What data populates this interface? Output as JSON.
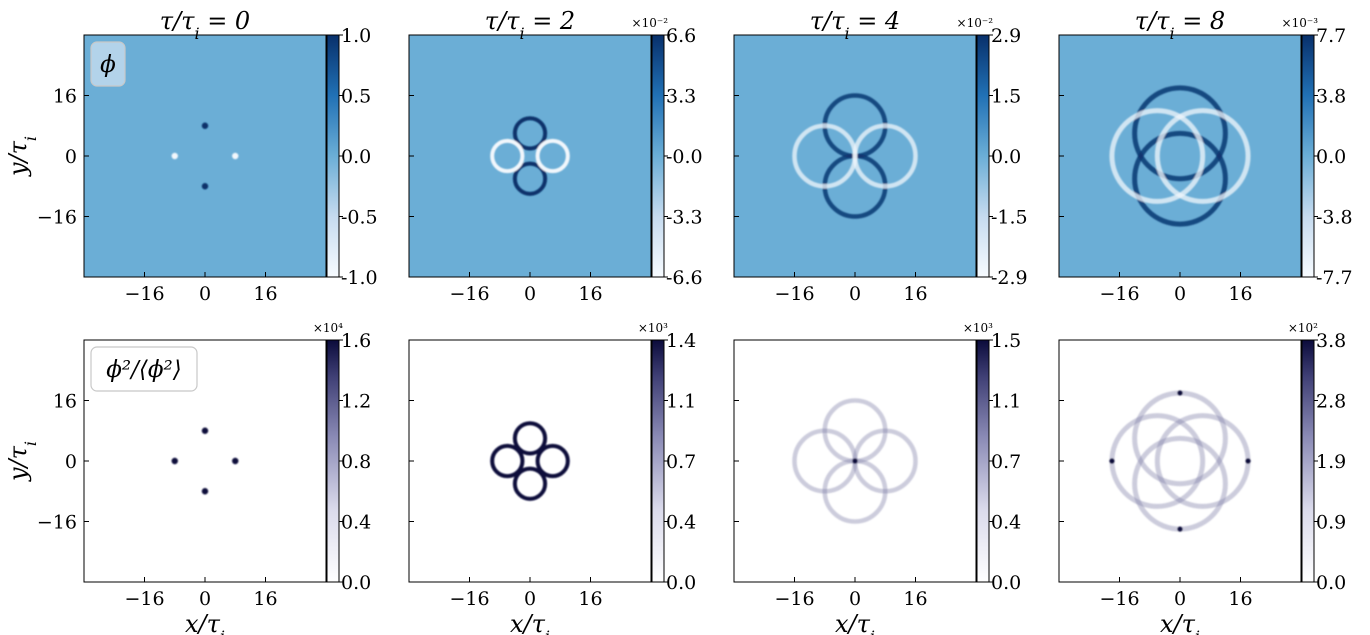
{
  "figure": {
    "panel_titles": [
      "τ/τ_i = 0",
      "τ/τ_i = 2",
      "τ/τ_i = 4",
      "τ/τ_i = 8"
    ],
    "ylabel": "y/τ_i",
    "xlabel": "x/τ_i",
    "row_labels": [
      "ϕ",
      "ϕ²/⟨ϕ²⟩"
    ]
  },
  "chart_data": [
    {
      "type": "heatmap",
      "row": 0,
      "col": 0,
      "title": "τ/τ_i = 0",
      "xlabel": "",
      "ylabel": "y/τ_i",
      "field": "phi",
      "label": "ϕ",
      "xticks": [
        "−16",
        "0",
        "16"
      ],
      "yticks": [
        "16",
        "0",
        "−16"
      ],
      "xlim": [
        -32,
        32
      ],
      "ylim": [
        -32,
        32
      ],
      "colormap": "Blues",
      "colorbar": {
        "ticks": [
          "1.0",
          "0.5",
          "0.0",
          "-0.5",
          "-1.0"
        ],
        "range": [
          -1.0,
          1.0
        ],
        "multiplier": ""
      },
      "background": "#6baed6",
      "features": [
        {
          "shape": "dot",
          "x": 0,
          "y": 8,
          "sign": "positive"
        },
        {
          "shape": "dot",
          "x": 0,
          "y": -8,
          "sign": "positive"
        },
        {
          "shape": "dot",
          "x": -8,
          "y": 0,
          "sign": "negative"
        },
        {
          "shape": "dot",
          "x": 8,
          "y": 0,
          "sign": "negative"
        }
      ]
    },
    {
      "type": "heatmap",
      "row": 0,
      "col": 1,
      "title": "τ/τ_i = 2",
      "xlabel": "",
      "ylabel": "",
      "field": "phi",
      "xticks": [
        "−16",
        "0",
        "16"
      ],
      "xlim": [
        -32,
        32
      ],
      "ylim": [
        -32,
        32
      ],
      "colormap": "Blues",
      "colorbar": {
        "ticks": [
          "6.6",
          "3.3",
          "-0.0",
          "-3.3",
          "-6.6"
        ],
        "range": [
          -6.6,
          6.6
        ],
        "multiplier": "×10⁻²"
      },
      "background": "#6baed6",
      "features": [
        {
          "shape": "ring",
          "x": 0,
          "y": 6,
          "r": 4,
          "sign": "positive"
        },
        {
          "shape": "ring",
          "x": 0,
          "y": -6,
          "r": 4,
          "sign": "positive"
        },
        {
          "shape": "ring",
          "x": -6,
          "y": 0,
          "r": 4,
          "sign": "negative"
        },
        {
          "shape": "ring",
          "x": 6,
          "y": 0,
          "r": 4,
          "sign": "negative"
        }
      ]
    },
    {
      "type": "heatmap",
      "row": 0,
      "col": 2,
      "title": "τ/τ_i = 4",
      "xlabel": "",
      "ylabel": "",
      "field": "phi",
      "xticks": [
        "−16",
        "0",
        "16"
      ],
      "xlim": [
        -32,
        32
      ],
      "ylim": [
        -32,
        32
      ],
      "colormap": "Blues",
      "colorbar": {
        "ticks": [
          "2.9",
          "1.5",
          "0.0",
          "-1.5",
          "-2.9"
        ],
        "range": [
          -2.9,
          2.9
        ],
        "multiplier": "×10⁻²"
      },
      "background": "#6baed6",
      "features": [
        {
          "shape": "ring",
          "x": 0,
          "y": 8,
          "r": 8,
          "sign": "positive"
        },
        {
          "shape": "ring",
          "x": 0,
          "y": -8,
          "r": 8,
          "sign": "positive"
        },
        {
          "shape": "ring",
          "x": -8,
          "y": 0,
          "r": 8,
          "sign": "negative"
        },
        {
          "shape": "ring",
          "x": 8,
          "y": 0,
          "r": 8,
          "sign": "negative"
        }
      ]
    },
    {
      "type": "heatmap",
      "row": 0,
      "col": 3,
      "title": "τ/τ_i = 8",
      "xlabel": "",
      "ylabel": "",
      "field": "phi",
      "xticks": [
        "−16",
        "0",
        "16"
      ],
      "xlim": [
        -32,
        32
      ],
      "ylim": [
        -32,
        32
      ],
      "colormap": "Blues",
      "colorbar": {
        "ticks": [
          "7.7",
          "3.8",
          "0.0",
          "-3.8",
          "-7.7"
        ],
        "range": [
          -7.7,
          7.7
        ],
        "multiplier": "×10⁻³"
      },
      "background": "#6baed6",
      "features": [
        {
          "shape": "ring",
          "x": 0,
          "y": 6,
          "r": 12,
          "sign": "positive"
        },
        {
          "shape": "ring",
          "x": 0,
          "y": -6,
          "r": 12,
          "sign": "positive"
        },
        {
          "shape": "ring",
          "x": -6,
          "y": 0,
          "r": 12,
          "sign": "negative"
        },
        {
          "shape": "ring",
          "x": 6,
          "y": 0,
          "r": 12,
          "sign": "negative"
        }
      ]
    },
    {
      "type": "heatmap",
      "row": 1,
      "col": 0,
      "title": "",
      "xlabel": "x/τ_i",
      "ylabel": "y/τ_i",
      "field": "phi2",
      "label": "ϕ²/⟨ϕ²⟩",
      "xticks": [
        "−16",
        "0",
        "16"
      ],
      "yticks": [
        "16",
        "0",
        "−16"
      ],
      "xlim": [
        -32,
        32
      ],
      "ylim": [
        -32,
        32
      ],
      "colormap": "Purples",
      "colorbar": {
        "ticks": [
          "1.6",
          "1.2",
          "0.8",
          "0.4",
          "0.0"
        ],
        "range": [
          0.0,
          1.6
        ],
        "multiplier": "×10⁴"
      },
      "background": "#ffffff",
      "features": [
        {
          "shape": "dot",
          "x": 0,
          "y": 8
        },
        {
          "shape": "dot",
          "x": 0,
          "y": -8
        },
        {
          "shape": "dot",
          "x": -8,
          "y": 0
        },
        {
          "shape": "dot",
          "x": 8,
          "y": 0
        }
      ]
    },
    {
      "type": "heatmap",
      "row": 1,
      "col": 1,
      "title": "",
      "xlabel": "x/τ_i",
      "ylabel": "",
      "field": "phi2",
      "xticks": [
        "−16",
        "0",
        "16"
      ],
      "xlim": [
        -32,
        32
      ],
      "ylim": [
        -32,
        32
      ],
      "colormap": "Purples",
      "colorbar": {
        "ticks": [
          "1.4",
          "1.1",
          "0.7",
          "0.4",
          "0.0"
        ],
        "range": [
          0.0,
          1.4
        ],
        "multiplier": "×10³"
      },
      "background": "#ffffff",
      "features": [
        {
          "shape": "ring",
          "x": 0,
          "y": 6,
          "r": 4
        },
        {
          "shape": "ring",
          "x": 0,
          "y": -6,
          "r": 4
        },
        {
          "shape": "ring",
          "x": -6,
          "y": 0,
          "r": 4
        },
        {
          "shape": "ring",
          "x": 6,
          "y": 0,
          "r": 4
        }
      ]
    },
    {
      "type": "heatmap",
      "row": 1,
      "col": 2,
      "title": "",
      "xlabel": "x/τ_i",
      "ylabel": "",
      "field": "phi2",
      "xticks": [
        "−16",
        "0",
        "16"
      ],
      "xlim": [
        -32,
        32
      ],
      "ylim": [
        -32,
        32
      ],
      "colormap": "Purples",
      "colorbar": {
        "ticks": [
          "1.5",
          "1.1",
          "0.7",
          "0.4",
          "0.0"
        ],
        "range": [
          0.0,
          1.5
        ],
        "multiplier": "×10³"
      },
      "background": "#ffffff",
      "features": [
        {
          "shape": "ring",
          "x": 0,
          "y": 8,
          "r": 8
        },
        {
          "shape": "ring",
          "x": 0,
          "y": -8,
          "r": 8
        },
        {
          "shape": "ring",
          "x": -8,
          "y": 0,
          "r": 8
        },
        {
          "shape": "ring",
          "x": 8,
          "y": 0,
          "r": 8
        },
        {
          "shape": "dot",
          "x": 0,
          "y": 0
        }
      ]
    },
    {
      "type": "heatmap",
      "row": 1,
      "col": 3,
      "title": "",
      "xlabel": "x/τ_i",
      "ylabel": "",
      "field": "phi2",
      "xticks": [
        "−16",
        "0",
        "16"
      ],
      "xlim": [
        -32,
        32
      ],
      "ylim": [
        -32,
        32
      ],
      "colormap": "Purples",
      "colorbar": {
        "ticks": [
          "3.8",
          "2.8",
          "1.9",
          "0.9",
          "0.0"
        ],
        "range": [
          0.0,
          3.8
        ],
        "multiplier": "×10²"
      },
      "background": "#ffffff",
      "features": [
        {
          "shape": "ring",
          "x": 0,
          "y": 6,
          "r": 12
        },
        {
          "shape": "ring",
          "x": 0,
          "y": -6,
          "r": 12
        },
        {
          "shape": "ring",
          "x": -6,
          "y": 0,
          "r": 12
        },
        {
          "shape": "ring",
          "x": 6,
          "y": 0,
          "r": 12
        },
        {
          "shape": "dot",
          "x": 0,
          "y": 18
        },
        {
          "shape": "dot",
          "x": 0,
          "y": -18
        },
        {
          "shape": "dot",
          "x": -18,
          "y": 0
        },
        {
          "shape": "dot",
          "x": 18,
          "y": 0
        }
      ]
    }
  ]
}
